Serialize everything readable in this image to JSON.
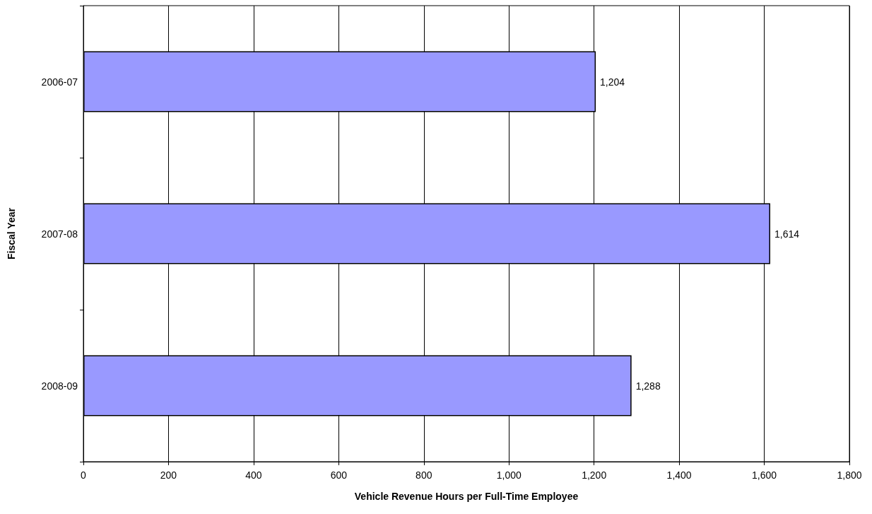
{
  "chart_data": {
    "type": "bar",
    "orientation": "horizontal",
    "xlabel": "Vehicle Revenue Hours per Full-Time Employee",
    "ylabel": "Fiscal Year",
    "categories": [
      "2006-07",
      "2007-08",
      "2008-09"
    ],
    "values": [
      1204,
      1614,
      1288
    ],
    "value_labels": [
      "1,204",
      "1,614",
      "1,288"
    ],
    "color": "#9999ff",
    "xlim": [
      0,
      1800
    ],
    "xticks": [
      0,
      200,
      400,
      600,
      800,
      {
        "value": 1000,
        "label": "1,000"
      },
      {
        "value": 1200,
        "label": "1,200"
      },
      {
        "value": 1400,
        "label": "1,400"
      },
      {
        "value": 1600,
        "label": "1,600"
      },
      {
        "value": 1800,
        "label": "1,800"
      }
    ],
    "grid": "x"
  }
}
